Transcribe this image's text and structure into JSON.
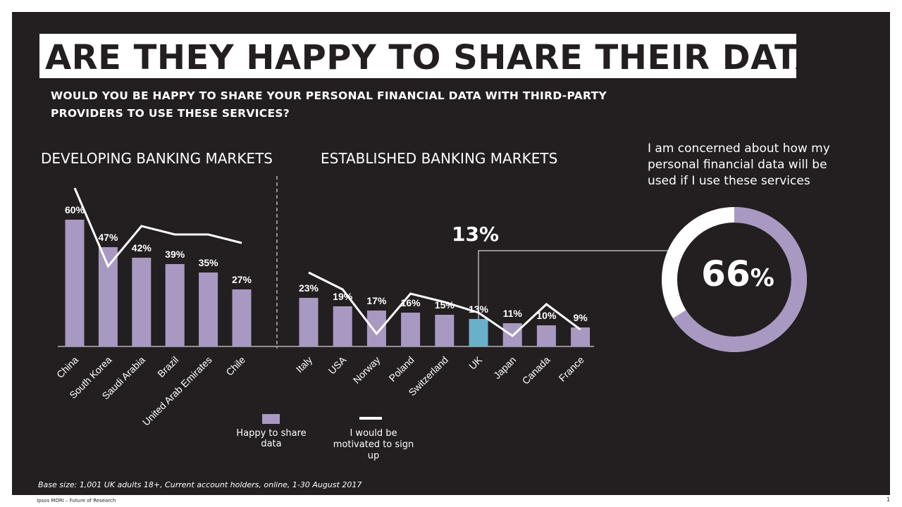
{
  "title": "ARE THEY HAPPY TO SHARE THEIR DATA?",
  "question": "WOULD YOU BE HAPPY TO SHARE YOUR PERSONAL FINANCIAL DATA WITH THIRD-PARTY PROVIDERS TO USE THESE SERVICES?",
  "sections": {
    "developing": "DEVELOPING BANKING MARKETS",
    "established": "ESTABLISHED BANKING MARKETS"
  },
  "concern": {
    "text": "I am concerned about how my personal financial data will be used if I use these services",
    "value": "66",
    "unit": "%",
    "fraction": 0.66
  },
  "callout": {
    "value": "13%",
    "target": "UK"
  },
  "legend": {
    "bar": "Happy to share data",
    "line": "I would be motivated to sign up"
  },
  "base_note": "Base size: 1,001 UK adults 18+, Current account holders, online, 1-30 August 2017",
  "footer": {
    "source": "Ipsos MORI – Future of Research",
    "page": "1"
  },
  "colors": {
    "background": "#231f20",
    "bar": "#a899c2",
    "highlight": "#6ab0c8",
    "line": "#ffffff",
    "donut_rest": "#ffffff"
  },
  "chart_data": {
    "type": "bar",
    "title": "WOULD YOU BE HAPPY TO SHARE YOUR PERSONAL FINANCIAL DATA WITH THIRD-PARTY PROVIDERS TO USE THESE SERVICES?",
    "groups": [
      {
        "name": "DEVELOPING BANKING MARKETS",
        "categories": [
          "China",
          "South Korea",
          "Saudi Arabia",
          "Brazil",
          "United Arab Emirates",
          "Chile"
        ],
        "happy": [
          60,
          47,
          42,
          39,
          35,
          27
        ],
        "labels": [
          "60%",
          "47%",
          "42%",
          "39%",
          "35%",
          "27%"
        ],
        "motivated": [
          75,
          38,
          57,
          53,
          53,
          49
        ]
      },
      {
        "name": "ESTABLISHED BANKING MARKETS",
        "categories": [
          "Italy",
          "USA",
          "Norway",
          "Poland",
          "Switzerland",
          "UK",
          "Japan",
          "Canada",
          "France"
        ],
        "happy": [
          23,
          19,
          17,
          16,
          15,
          13,
          11,
          10,
          9
        ],
        "labels": [
          "23%",
          "19%",
          "17%",
          "16%",
          "15%",
          "13%",
          "11%",
          "10%",
          "9%"
        ],
        "motivated": [
          35,
          27,
          6,
          25,
          21,
          16,
          5,
          20,
          8
        ]
      }
    ],
    "series": [
      {
        "name": "Happy to share data",
        "type": "bar"
      },
      {
        "name": "I would be motivated to sign up",
        "type": "line"
      }
    ],
    "highlight": "UK",
    "ylim": [
      0,
      80
    ]
  }
}
